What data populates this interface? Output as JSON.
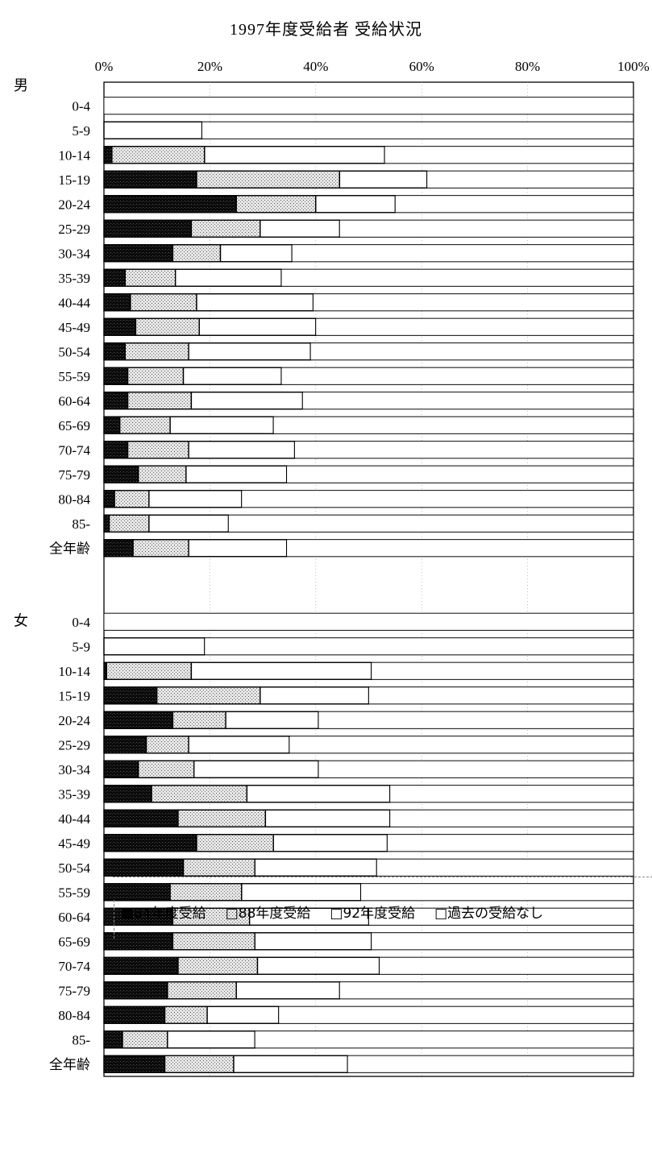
{
  "title": "1997年度受給者 受給状況",
  "colors": {
    "received_84": "#111111",
    "received_88": "#cfcfcf",
    "received_92": "#ffffff",
    "never": "#ffffff",
    "outline": "#000000"
  },
  "legend": [
    {
      "key": "received_84",
      "label": "■84年度受給"
    },
    {
      "key": "received_88",
      "label": "□88年度受給"
    },
    {
      "key": "received_92",
      "label": "□92年度受給"
    },
    {
      "key": "never",
      "label": "□過去の受給なし"
    }
  ],
  "chart_data": {
    "type": "bar",
    "orientation": "horizontal",
    "stacked": "percent",
    "title": "1997年度受給者 受給状況",
    "xlim": [
      0,
      100
    ],
    "xticks": [
      "0%",
      "20%",
      "40%",
      "60%",
      "80%",
      "100%"
    ],
    "grid": true,
    "legend_position": "bottom",
    "series_names": [
      "84年度受給",
      "88年度受給",
      "92年度受給",
      "過去の受給なし"
    ],
    "groups": [
      {
        "name": "男",
        "categories": [
          "0-4",
          "5-9",
          "10-14",
          "15-19",
          "20-24",
          "25-29",
          "30-34",
          "35-39",
          "40-44",
          "45-49",
          "50-54",
          "55-59",
          "60-64",
          "65-69",
          "70-74",
          "75-79",
          "80-84",
          "85-",
          "全年齢"
        ],
        "series": [
          {
            "name": "84年度受給",
            "values": [
              0,
              0,
              1.5,
              17.5,
              25,
              16.5,
              13,
              4,
              5,
              6,
              4,
              4.5,
              4.5,
              3,
              4.5,
              6.5,
              2,
              1,
              5.5
            ]
          },
          {
            "name": "88年度受給",
            "values": [
              0,
              0,
              17.5,
              27,
              15,
              13,
              9,
              9.5,
              12.5,
              12,
              12,
              10.5,
              12,
              9.5,
              11.5,
              9,
              6.5,
              7.5,
              10.5
            ]
          },
          {
            "name": "92年度受給",
            "values": [
              0,
              18.5,
              34,
              16.5,
              15,
              15,
              13.5,
              20,
              22,
              22,
              23,
              18.5,
              21,
              19.5,
              20,
              19,
              17.5,
              15,
              18.5
            ]
          },
          {
            "name": "過去の受給なし",
            "values": [
              100,
              81.5,
              47,
              39,
              45,
              55.5,
              64.5,
              66.5,
              60.5,
              60,
              61,
              66.5,
              62.5,
              68,
              64,
              65.5,
              74,
              76.5,
              65.5
            ]
          }
        ]
      },
      {
        "name": "女",
        "categories": [
          "0-4",
          "5-9",
          "10-14",
          "15-19",
          "20-24",
          "25-29",
          "30-34",
          "35-39",
          "40-44",
          "45-49",
          "50-54",
          "55-59",
          "60-64",
          "65-69",
          "70-74",
          "75-79",
          "80-84",
          "85-",
          "全年齢"
        ],
        "series": [
          {
            "name": "84年度受給",
            "values": [
              0,
              0,
              0.5,
              10,
              13,
              8,
              6.5,
              9,
              14,
              17.5,
              15,
              12.5,
              13,
              13,
              14,
              12,
              11.5,
              3.5,
              11.5
            ]
          },
          {
            "name": "88年度受給",
            "values": [
              0,
              0,
              16,
              19.5,
              10,
              8,
              10.5,
              18,
              16.5,
              14.5,
              13.5,
              13.5,
              14.5,
              15.5,
              15,
              13,
              8,
              8.5,
              13
            ]
          },
          {
            "name": "92年度受給",
            "values": [
              0,
              19,
              34,
              20.5,
              17.5,
              19,
              23.5,
              27,
              23.5,
              21.5,
              23,
              22.5,
              22.5,
              22,
              23,
              19.5,
              13.5,
              16.5,
              21.5
            ]
          },
          {
            "name": "過去の受給なし",
            "values": [
              100,
              81,
              49.5,
              50,
              59.5,
              65,
              59.5,
              46,
              46,
              46.5,
              48.5,
              51.5,
              50,
              49.5,
              48,
              55.5,
              67,
              71.5,
              54
            ]
          }
        ]
      }
    ]
  }
}
